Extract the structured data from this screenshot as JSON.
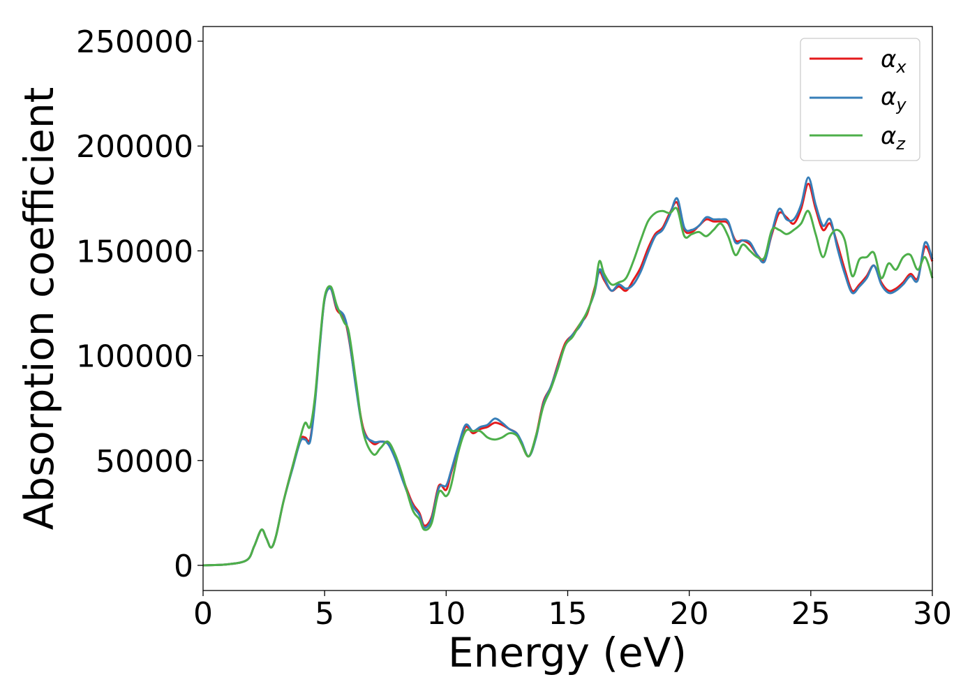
{
  "chart_data": {
    "type": "line",
    "title": "",
    "xlabel": "Energy (eV)",
    "ylabel": "Absorption coefficient",
    "xlim": [
      0,
      30
    ],
    "ylim": [
      -12000,
      257000
    ],
    "xticks": [
      0,
      5,
      10,
      15,
      20,
      25,
      30
    ],
    "yticks": [
      0,
      50000,
      100000,
      150000,
      200000,
      250000
    ],
    "grid": false,
    "legend_position": "top-right",
    "x": [
      0.0,
      1.0,
      1.8,
      2.1,
      2.4,
      2.6,
      2.8,
      3.0,
      3.3,
      3.7,
      4.0,
      4.2,
      4.4,
      4.6,
      4.8,
      5.0,
      5.25,
      5.5,
      5.8,
      6.0,
      6.3,
      6.6,
      7.0,
      7.3,
      7.6,
      7.9,
      8.2,
      8.6,
      8.9,
      9.1,
      9.4,
      9.7,
      10.0,
      10.2,
      10.5,
      10.8,
      11.1,
      11.4,
      11.7,
      12.0,
      12.3,
      12.6,
      12.9,
      13.1,
      13.4,
      13.7,
      14.0,
      14.3,
      14.6,
      14.9,
      15.2,
      15.5,
      15.8,
      16.1,
      16.3,
      16.5,
      16.8,
      17.1,
      17.4,
      17.7,
      18.0,
      18.3,
      18.6,
      18.9,
      19.2,
      19.5,
      19.8,
      20.1,
      20.4,
      20.7,
      21.0,
      21.3,
      21.6,
      21.9,
      22.2,
      22.5,
      22.8,
      23.1,
      23.4,
      23.7,
      24.0,
      24.3,
      24.6,
      24.9,
      25.2,
      25.5,
      25.8,
      26.1,
      26.4,
      26.7,
      27.0,
      27.3,
      27.6,
      27.9,
      28.2,
      28.5,
      28.8,
      29.1,
      29.4,
      29.7,
      30.0
    ],
    "series": [
      {
        "name": "α_x",
        "color": "#e41a1c",
        "values": [
          0,
          500,
          2500,
          9000,
          17000,
          13000,
          8500,
          14000,
          30000,
          48000,
          60000,
          61000,
          60000,
          78000,
          105000,
          127000,
          132000,
          122000,
          118000,
          108000,
          85000,
          65000,
          58000,
          59000,
          58000,
          52000,
          42000,
          30000,
          25000,
          19000,
          23000,
          38000,
          36000,
          44000,
          56000,
          66000,
          63000,
          65000,
          66000,
          68000,
          67000,
          65000,
          63000,
          58000,
          52000,
          62000,
          78000,
          85000,
          96000,
          106000,
          110000,
          115000,
          120000,
          132000,
          140000,
          136000,
          131000,
          133000,
          131000,
          136000,
          142000,
          151000,
          158000,
          161000,
          168000,
          173000,
          160000,
          159000,
          162000,
          165000,
          164000,
          164000,
          163000,
          155000,
          155000,
          153000,
          148000,
          146000,
          158000,
          168000,
          166000,
          163000,
          170000,
          182000,
          170000,
          160000,
          163000,
          153000,
          141000,
          131000,
          134000,
          138000,
          143000,
          135000,
          131000,
          132000,
          135000,
          139000,
          137000,
          152000,
          145000
        ]
      },
      {
        "name": "α_y",
        "color": "#377eb8",
        "values": [
          0,
          500,
          2500,
          9000,
          17000,
          13000,
          8500,
          14000,
          30000,
          47000,
          59000,
          60000,
          59000,
          77000,
          104000,
          127000,
          132000,
          123000,
          119000,
          109000,
          84000,
          64000,
          59000,
          59000,
          58000,
          51000,
          41000,
          29000,
          24000,
          18000,
          22000,
          37000,
          38000,
          45000,
          57000,
          67000,
          64000,
          66000,
          67000,
          70000,
          68000,
          65000,
          63000,
          59000,
          52000,
          61000,
          77000,
          85000,
          95000,
          105000,
          110000,
          114000,
          121000,
          130000,
          141000,
          137000,
          131000,
          134000,
          132000,
          134000,
          140000,
          149000,
          157000,
          160000,
          167000,
          175000,
          161000,
          160000,
          162000,
          166000,
          165000,
          165000,
          164000,
          154000,
          155000,
          154000,
          148000,
          145000,
          159000,
          170000,
          165000,
          165000,
          172000,
          185000,
          172000,
          162000,
          165000,
          151000,
          139000,
          130000,
          133000,
          137000,
          143000,
          134000,
          130000,
          131000,
          134000,
          138000,
          136000,
          154000,
          146000
        ]
      },
      {
        "name": "α_z",
        "color": "#4daf4a",
        "values": [
          0,
          500,
          2500,
          9000,
          17000,
          13000,
          8500,
          14000,
          30000,
          48000,
          61000,
          68000,
          66000,
          80000,
          106000,
          128000,
          133000,
          124000,
          116000,
          111000,
          87000,
          63000,
          53000,
          56000,
          59000,
          53000,
          43000,
          27000,
          22000,
          17000,
          20000,
          35000,
          33000,
          38000,
          54000,
          64000,
          64000,
          64000,
          61000,
          60000,
          61000,
          63000,
          62000,
          58000,
          52000,
          62000,
          76000,
          84000,
          94000,
          105000,
          109000,
          115000,
          121000,
          131000,
          145000,
          139000,
          134000,
          135000,
          137000,
          145000,
          155000,
          164000,
          168000,
          169000,
          168000,
          170000,
          157000,
          158000,
          159000,
          157000,
          160000,
          163000,
          157000,
          148000,
          153000,
          150000,
          147000,
          147000,
          160000,
          160000,
          158000,
          160000,
          163000,
          169000,
          158000,
          147000,
          157000,
          160000,
          155000,
          138000,
          146000,
          147000,
          149000,
          137000,
          144000,
          141000,
          147000,
          148000,
          141000,
          147000,
          137000
        ]
      }
    ]
  }
}
